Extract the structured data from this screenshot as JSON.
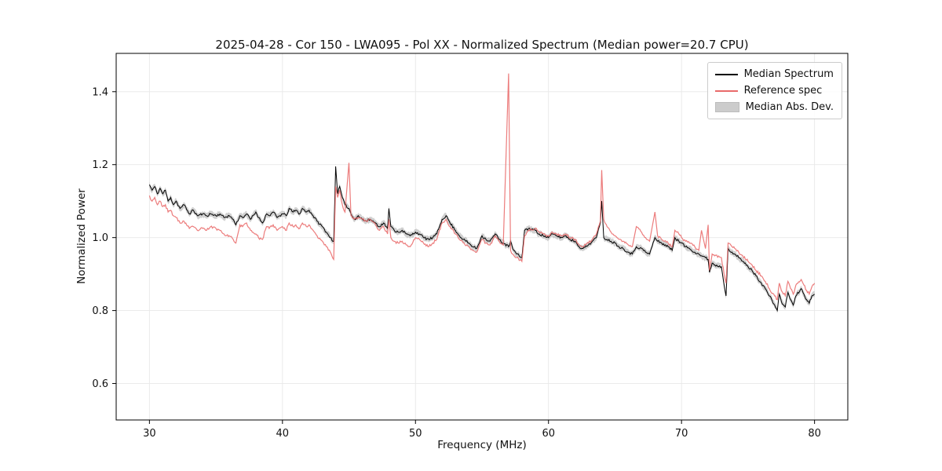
{
  "chart_data": {
    "type": "line",
    "title": "2025-04-28 - Cor 150 - LWA095 - Pol XX - Normalized Spectrum (Median power=20.7 CPU)",
    "xlabel": "Frequency (MHz)",
    "ylabel": "Normalized Power",
    "xlim": [
      27.5,
      82.5
    ],
    "ylim": [
      0.5,
      1.505
    ],
    "xticks": [
      30,
      40,
      50,
      60,
      70,
      80
    ],
    "yticks": [
      0.6,
      0.8,
      1.0,
      1.2,
      1.4
    ],
    "grid": true,
    "legend": {
      "position": "upper right",
      "entries": [
        {
          "label": "Median Spectrum",
          "swatch": "line",
          "color": "#000000"
        },
        {
          "label": "Reference spec",
          "swatch": "line",
          "color": "#e96a6a"
        },
        {
          "label": "Median Abs. Dev.",
          "swatch": "patch",
          "color": "#cccccc"
        }
      ]
    },
    "band": {
      "name": "Median Abs. Dev.",
      "around": "Median Spectrum",
      "half_width": 0.008,
      "color": "#aaaaaa"
    },
    "x": [
      30.0,
      30.2,
      30.4,
      30.6,
      30.8,
      31.0,
      31.2,
      31.4,
      31.6,
      31.8,
      32.0,
      32.3,
      32.6,
      33.0,
      33.3,
      33.6,
      34.0,
      34.3,
      34.6,
      35.0,
      35.3,
      35.6,
      36.0,
      36.3,
      36.5,
      36.8,
      37.0,
      37.3,
      37.6,
      38.0,
      38.2,
      38.5,
      38.8,
      39.0,
      39.3,
      39.6,
      40.0,
      40.3,
      40.5,
      40.8,
      41.0,
      41.3,
      41.5,
      41.8,
      42.0,
      42.3,
      42.6,
      43.0,
      43.3,
      43.6,
      43.85,
      44.0,
      44.15,
      44.3,
      44.5,
      44.7,
      45.0,
      45.15,
      45.4,
      45.7,
      46.0,
      46.3,
      46.6,
      47.0,
      47.3,
      47.6,
      47.9,
      48.0,
      48.15,
      48.4,
      48.7,
      49.0,
      49.3,
      49.6,
      50.0,
      50.3,
      50.6,
      51.0,
      51.3,
      51.6,
      52.0,
      52.3,
      52.6,
      53.0,
      53.3,
      53.6,
      54.0,
      54.3,
      54.6,
      55.0,
      55.3,
      55.6,
      56.0,
      56.3,
      56.6,
      57.0,
      57.15,
      57.3,
      57.6,
      58.0,
      58.2,
      58.5,
      59.0,
      59.3,
      59.6,
      60.0,
      60.3,
      60.6,
      61.0,
      61.3,
      61.6,
      62.0,
      62.3,
      62.6,
      63.0,
      63.3,
      63.6,
      63.9,
      64.0,
      64.15,
      64.4,
      64.7,
      65.0,
      65.3,
      65.6,
      66.0,
      66.3,
      66.6,
      67.0,
      67.3,
      67.6,
      68.0,
      68.2,
      68.5,
      69.0,
      69.3,
      69.5,
      69.8,
      70.0,
      70.3,
      70.6,
      71.0,
      71.3,
      71.5,
      71.8,
      72.0,
      72.1,
      72.3,
      72.5,
      73.0,
      73.2,
      73.35,
      73.5,
      73.8,
      74.0,
      74.3,
      74.6,
      75.0,
      75.3,
      75.6,
      76.0,
      76.3,
      76.6,
      77.0,
      77.2,
      77.35,
      77.5,
      77.8,
      78.0,
      78.2,
      78.4,
      78.6,
      79.0,
      79.2,
      79.4,
      79.6,
      79.8,
      80.0
    ],
    "series": [
      {
        "name": "Median Spectrum",
        "color": "#000000",
        "values": [
          1.145,
          1.13,
          1.14,
          1.12,
          1.135,
          1.12,
          1.13,
          1.1,
          1.11,
          1.09,
          1.1,
          1.08,
          1.09,
          1.065,
          1.075,
          1.06,
          1.065,
          1.06,
          1.065,
          1.06,
          1.065,
          1.055,
          1.06,
          1.05,
          1.035,
          1.06,
          1.055,
          1.065,
          1.05,
          1.07,
          1.055,
          1.04,
          1.065,
          1.06,
          1.07,
          1.055,
          1.065,
          1.06,
          1.08,
          1.07,
          1.075,
          1.065,
          1.08,
          1.07,
          1.075,
          1.06,
          1.045,
          1.03,
          1.015,
          1.0,
          0.99,
          1.195,
          1.12,
          1.14,
          1.11,
          1.09,
          1.08,
          1.065,
          1.05,
          1.06,
          1.05,
          1.045,
          1.05,
          1.04,
          1.03,
          1.04,
          1.025,
          1.08,
          1.03,
          1.02,
          1.015,
          1.02,
          1.01,
          1.005,
          1.015,
          1.01,
          1.0,
          0.995,
          1.0,
          1.01,
          1.05,
          1.06,
          1.04,
          1.02,
          1.005,
          0.995,
          0.985,
          0.975,
          0.97,
          1.005,
          0.995,
          0.99,
          1.01,
          0.995,
          0.985,
          0.975,
          0.99,
          0.97,
          0.955,
          0.945,
          1.02,
          1.025,
          1.02,
          1.01,
          1.005,
          1.0,
          1.01,
          1.005,
          1.0,
          1.005,
          0.995,
          0.99,
          0.975,
          0.97,
          0.98,
          0.99,
          1.0,
          1.04,
          1.1,
          1.0,
          0.995,
          0.99,
          0.985,
          0.975,
          0.97,
          0.96,
          0.955,
          0.975,
          0.97,
          0.96,
          0.955,
          1.0,
          0.99,
          0.985,
          0.975,
          0.965,
          1.0,
          0.99,
          0.985,
          0.975,
          0.97,
          0.96,
          0.955,
          0.95,
          0.945,
          0.94,
          0.905,
          0.93,
          0.925,
          0.92,
          0.87,
          0.84,
          0.97,
          0.96,
          0.955,
          0.945,
          0.935,
          0.92,
          0.91,
          0.895,
          0.875,
          0.86,
          0.84,
          0.815,
          0.8,
          0.845,
          0.825,
          0.81,
          0.85,
          0.83,
          0.815,
          0.84,
          0.86,
          0.845,
          0.83,
          0.82,
          0.84,
          0.845
        ]
      },
      {
        "name": "Reference spec",
        "color": "#e96a6a",
        "values": [
          1.115,
          1.1,
          1.11,
          1.09,
          1.1,
          1.085,
          1.09,
          1.07,
          1.075,
          1.06,
          1.055,
          1.04,
          1.045,
          1.025,
          1.03,
          1.02,
          1.025,
          1.02,
          1.03,
          1.025,
          1.02,
          1.01,
          1.005,
          0.995,
          0.985,
          1.035,
          1.03,
          1.04,
          1.02,
          1.01,
          1.0,
          0.995,
          1.03,
          1.025,
          1.035,
          1.02,
          1.03,
          1.02,
          1.04,
          1.03,
          1.035,
          1.025,
          1.04,
          1.03,
          1.035,
          1.02,
          1.005,
          0.99,
          0.975,
          0.96,
          0.94,
          1.14,
          1.11,
          1.13,
          1.09,
          1.07,
          1.205,
          1.06,
          1.05,
          1.055,
          1.05,
          1.045,
          1.05,
          1.035,
          1.02,
          1.03,
          1.01,
          1.05,
          1.0,
          0.99,
          0.985,
          0.99,
          0.98,
          0.975,
          1.0,
          0.995,
          0.985,
          0.975,
          0.985,
          0.995,
          1.04,
          1.05,
          1.03,
          1.01,
          0.995,
          0.985,
          0.975,
          0.965,
          0.96,
          0.995,
          0.985,
          0.98,
          1.005,
          0.99,
          0.98,
          1.45,
          0.965,
          0.955,
          0.945,
          0.935,
          1.005,
          1.02,
          1.025,
          1.015,
          1.01,
          1.005,
          1.015,
          1.01,
          1.005,
          1.01,
          1.0,
          0.995,
          0.98,
          0.975,
          0.985,
          0.995,
          1.01,
          1.045,
          1.185,
          1.05,
          1.03,
          1.015,
          1.005,
          0.995,
          0.99,
          0.98,
          0.975,
          1.03,
          1.015,
          1.0,
          0.99,
          1.07,
          1.005,
          0.995,
          0.985,
          0.975,
          1.02,
          1.01,
          1.0,
          0.99,
          0.985,
          0.975,
          0.965,
          1.02,
          0.97,
          1.035,
          0.91,
          0.955,
          0.95,
          0.945,
          0.9,
          0.875,
          0.985,
          0.975,
          0.97,
          0.96,
          0.95,
          0.935,
          0.925,
          0.91,
          0.895,
          0.88,
          0.86,
          0.84,
          0.83,
          0.875,
          0.855,
          0.84,
          0.88,
          0.86,
          0.845,
          0.87,
          0.885,
          0.87,
          0.855,
          0.845,
          0.865,
          0.875
        ]
      }
    ]
  },
  "style": {
    "grid_color": "#e8e8e8",
    "spine_color": "#000000",
    "tick_label_color": "#111111",
    "jitter_amplitude": 0.0035,
    "band_opacity": 0.55
  }
}
